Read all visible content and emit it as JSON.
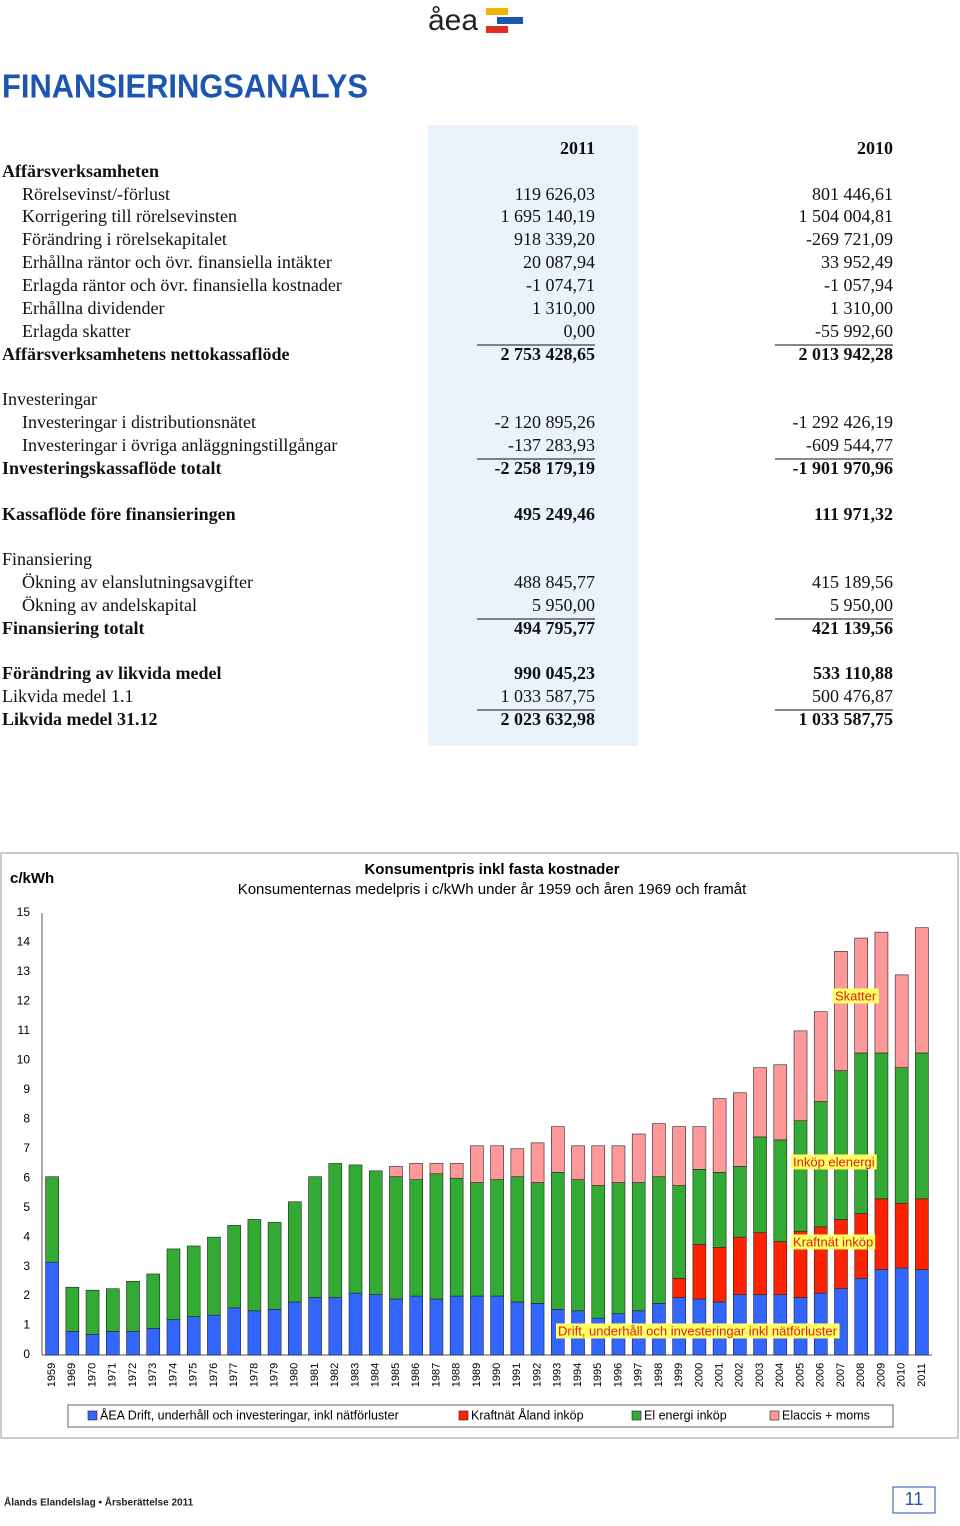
{
  "header": {
    "logo": "åea",
    "title": "FINANSIERINGSANALYS"
  },
  "table": {
    "columns": [
      "2011",
      "2010"
    ],
    "rows": [
      [
        "Affärsverksamheten"
      ],
      [
        "Rörelsevinst/-förlust",
        "119 626,03",
        "801 446,61"
      ],
      [
        "Korrigering till rörelsevinsten",
        "1 695 140,19",
        "1 504 004,81"
      ],
      [
        "Förändring i rörelsekapitalet",
        "918 339,20",
        "-269 721,09"
      ],
      [
        "Erhållna räntor och övr. finansiella intäkter",
        "20 087,94",
        "33 952,49"
      ],
      [
        "Erlagda räntor och övr. finansiella kostnader",
        "-1 074,71",
        "-1 057,94"
      ],
      [
        "Erhållna dividender",
        "1 310,00",
        "1 310,00"
      ],
      [
        "Erlagda skatter",
        "0,00",
        "-55 992,60"
      ],
      [
        "Affärsverksamhetens nettokassaflöde",
        "2 753 428,65",
        "2 013 942,28"
      ],
      [
        "Investeringar"
      ],
      [
        "Investeringar i distributionsnätet",
        "-2 120 895,26",
        "-1 292 426,19"
      ],
      [
        "Investeringar i övriga anläggningstillgångar",
        "-137 283,93",
        "-609 544,77"
      ],
      [
        "Investeringskassaflöde totalt",
        "-2 258 179,19",
        "-1 901 970,96"
      ],
      [
        "Kassaflöde före finansieringen",
        "495 249,46",
        "111 971,32"
      ],
      [
        "Finansiering"
      ],
      [
        "Ökning av elanslutningsavgifter",
        "488 845,77",
        "415 189,56"
      ],
      [
        "Ökning av andelskapital",
        "5 950,00",
        "5 950,00"
      ],
      [
        "Finansiering totalt",
        "494 795,77",
        "421 139,56"
      ],
      [
        "Förändring av likvida medel",
        "990 045,23",
        "533 110,88"
      ],
      [
        "Likvida medel 1.1",
        "1 033 587,75",
        "500 476,87"
      ],
      [
        "Likvida medel 31.12",
        "2 023 632,98",
        "1 033 587,75"
      ]
    ]
  },
  "chart_data": {
    "type": "bar",
    "stacked": true,
    "title": "Konsumentpris inkl fasta kostnader",
    "subtitle": "Konsumenternas medelpris i c/kWh under år 1959 och åren 1969 och framåt",
    "y_label": "c/kWh",
    "categories": [
      "1959",
      "1969",
      "1970",
      "1971",
      "1972",
      "1973",
      "1974",
      "1975",
      "1976",
      "1977",
      "1978",
      "1979",
      "1980",
      "1981",
      "1982",
      "1983",
      "1984",
      "1985",
      "1986",
      "1987",
      "1988",
      "1989",
      "1990",
      "1991",
      "1992",
      "1993",
      "1994",
      "1995",
      "1996",
      "1997",
      "1998",
      "1999",
      "2000",
      "2001",
      "2002",
      "2003",
      "2004",
      "2005",
      "2006",
      "2007",
      "2008",
      "2009",
      "2010",
      "2011"
    ],
    "series": [
      {
        "name": "ÅEA Drift, underhåll och investeringar, inkl nätförluster",
        "color": "#3366ff",
        "values": [
          3.15,
          0.8,
          0.7,
          0.8,
          0.8,
          0.9,
          1.2,
          1.3,
          1.35,
          1.6,
          1.5,
          1.55,
          1.8,
          1.95,
          1.95,
          2.1,
          2.05,
          1.9,
          2.0,
          1.9,
          2.0,
          2.0,
          2.0,
          1.8,
          1.75,
          1.55,
          1.5,
          1.25,
          1.4,
          1.5,
          1.75,
          1.95,
          1.9,
          1.8,
          2.05,
          2.05,
          2.05,
          1.95,
          2.1,
          2.25,
          2.6,
          2.9,
          2.95,
          2.9
        ]
      },
      {
        "name": "Kraftnät Åland inköp",
        "color": "#ff2200",
        "values": [
          0,
          0,
          0,
          0,
          0,
          0,
          0,
          0,
          0,
          0,
          0,
          0,
          0,
          0,
          0,
          0,
          0,
          0,
          0,
          0,
          0,
          0,
          0,
          0,
          0,
          0,
          0,
          0,
          0,
          0,
          0,
          0.65,
          1.85,
          1.85,
          1.95,
          2.1,
          1.8,
          2.25,
          2.25,
          2.35,
          2.2,
          2.4,
          2.2,
          2.4
        ]
      },
      {
        "name": "El energi inköp",
        "color": "#33aa33",
        "values": [
          2.9,
          1.5,
          1.5,
          1.45,
          1.7,
          1.85,
          2.4,
          2.4,
          2.65,
          2.8,
          3.1,
          2.95,
          3.4,
          4.1,
          4.55,
          4.35,
          4.2,
          4.15,
          3.95,
          4.25,
          4.0,
          3.85,
          3.95,
          4.25,
          4.1,
          4.65,
          4.45,
          4.5,
          4.45,
          4.35,
          4.3,
          3.15,
          2.55,
          2.55,
          2.4,
          3.25,
          3.45,
          3.75,
          4.25,
          5.05,
          5.45,
          4.95,
          4.6,
          4.95
        ]
      },
      {
        "name": "Elaccis + moms",
        "color": "#ff9999",
        "values": [
          0,
          0,
          0,
          0,
          0,
          0,
          0,
          0,
          0,
          0,
          0,
          0,
          0,
          0,
          0,
          0,
          0,
          0.35,
          0.55,
          0.35,
          0.5,
          1.25,
          1.15,
          0.95,
          1.35,
          1.55,
          1.15,
          1.35,
          1.25,
          1.65,
          1.8,
          2.0,
          1.45,
          2.5,
          2.5,
          2.35,
          2.55,
          3.05,
          3.05,
          4.05,
          3.9,
          4.1,
          3.15,
          4.25
        ]
      }
    ],
    "ylim": [
      0,
      15
    ],
    "yticks": [
      0,
      1,
      2,
      3,
      4,
      5,
      6,
      7,
      8,
      9,
      10,
      11,
      12,
      13,
      14,
      15
    ],
    "annotations": [
      "Skatter",
      "Inköp elenergi",
      "Kraftnät inköp",
      "Drift, underhåll och investeringar inkl nätförluster"
    ]
  },
  "footer": {
    "text": "Ålands Elandelslag • Årsberättelse 2011",
    "page": "11"
  }
}
